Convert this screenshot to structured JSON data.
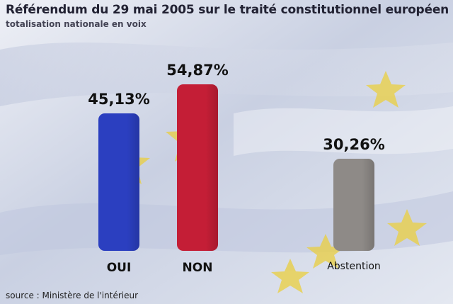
{
  "title": "Référendum du 29 mai 2005 sur le traité constitutionnel européen",
  "subtitle": "totalisation nationale en voix",
  "source": "source : Ministère de l'intérieur",
  "chart_data": {
    "type": "bar",
    "categories": [
      "OUI",
      "NON",
      "Abstention"
    ],
    "values": [
      45.13,
      54.87,
      30.26
    ],
    "value_labels": [
      "45,13%",
      "54,87%",
      "30,26%"
    ],
    "colors": [
      "#2b3fc0",
      "#c41e36",
      "#8e8a87"
    ],
    "grid": false,
    "legend": "none"
  },
  "colors": {
    "background": "#dfe3ee",
    "flag_star": "#e8cf4a"
  }
}
